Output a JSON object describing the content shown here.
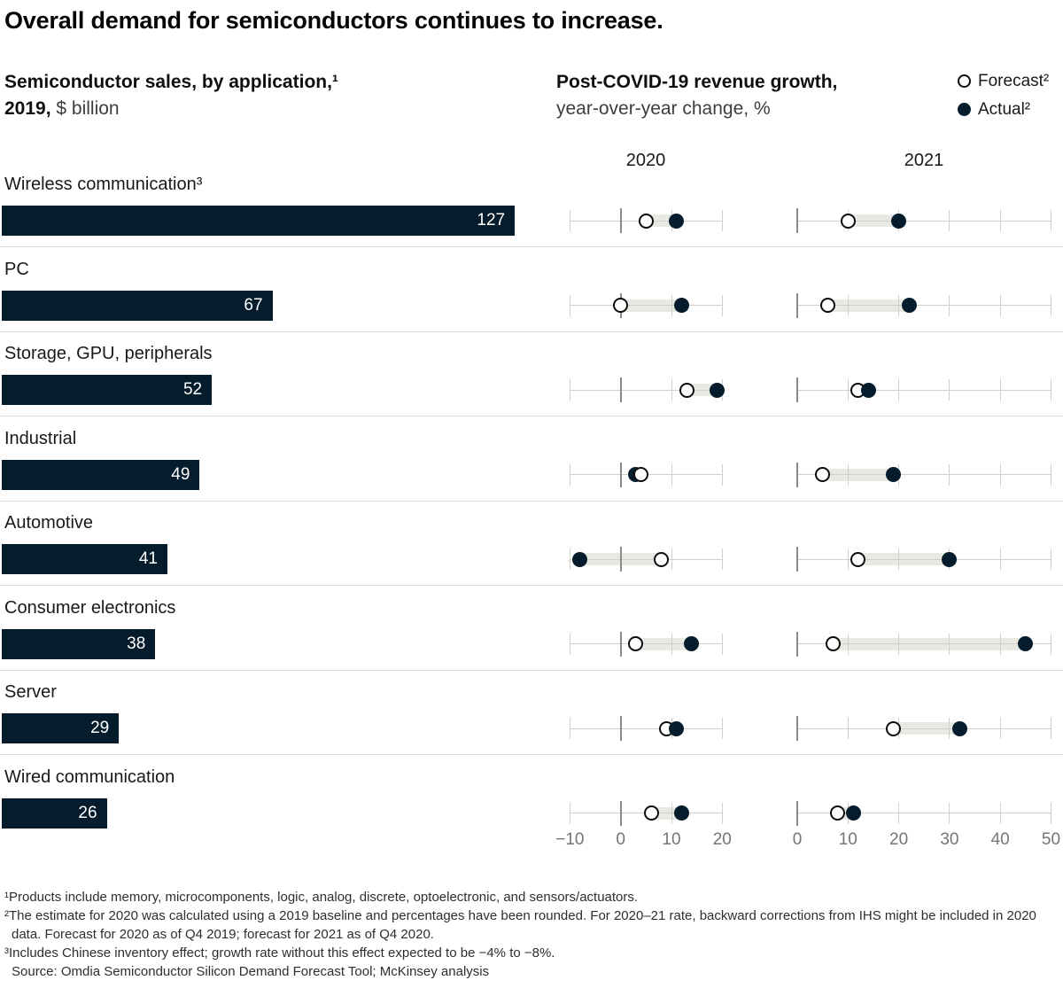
{
  "title": "Overall demand for semiconductors continues to increase.",
  "left_header": {
    "line1": "Semiconductor sales, by application,¹",
    "line2_bold": "2019,",
    "line2_rest": " $ billion"
  },
  "right_header": {
    "line1": "Post-COVID-19 revenue growth,",
    "line2": "year-over-year change, %"
  },
  "legend": {
    "forecast": "Forecast²",
    "actual": "Actual²"
  },
  "year_labels": [
    "2020",
    "2021"
  ],
  "chart_data": {
    "type": "bar+dumbbell",
    "bar_series_title": "Semiconductor sales, by application, 2019, $ billion",
    "dumbbell_series_title": "Post-COVID-19 revenue growth, year-over-year change, %",
    "categories": [
      "Wireless communication³",
      "PC",
      "Storage, GPU, peripherals",
      "Industrial",
      "Automotive",
      "Consumer electronics",
      "Server",
      "Wired communication"
    ],
    "sales_2019_usd_billion": [
      127,
      67,
      52,
      49,
      41,
      38,
      29,
      26
    ],
    "growth_2020": {
      "forecast": [
        5,
        0,
        13,
        4,
        8,
        3,
        9,
        6
      ],
      "actual": [
        11,
        12,
        19,
        3,
        -8,
        14,
        11,
        12
      ]
    },
    "growth_2021": {
      "forecast": [
        10,
        6,
        12,
        5,
        12,
        7,
        19,
        8
      ],
      "actual": [
        20,
        22,
        14,
        19,
        30,
        45,
        32,
        11
      ]
    },
    "axis_2020": {
      "ticks": [
        -10,
        0,
        10,
        20
      ],
      "tick_labels": [
        "−10",
        "0",
        "10",
        "20"
      ],
      "range": [
        -10,
        20
      ]
    },
    "axis_2021": {
      "ticks": [
        0,
        10,
        20,
        30,
        40,
        50
      ],
      "tick_labels": [
        "0",
        "10",
        "20",
        "30",
        "40",
        "50"
      ],
      "range": [
        0,
        50
      ]
    },
    "legend_entries": [
      "Forecast",
      "Actual"
    ],
    "grid": "vertical-ticks-per-row",
    "legend_position": "top-right"
  },
  "footnotes": [
    "¹Products include memory, microcomponents, logic, analog, discrete, optoelectronic, and sensors/actuators.",
    "²The estimate for 2020 was calculated using a 2019 baseline and percentages have been rounded. For 2020–21 rate, backward corrections from IHS might be included in 2020 data. Forecast for 2020 as of Q4 2019; forecast for 2021 as of Q4 2020.",
    "³Includes Chinese inventory effect; growth rate without this effect expected to be −4% to −8%.",
    "Source: Omdia Semiconductor Silicon Demand Forecast Tool; McKinsey analysis"
  ],
  "colors": {
    "navy": "#051c2c",
    "band": "#e9e9e3",
    "gridline": "#cfcfcc",
    "zero_line": "#8a8a8a",
    "separator": "#dcdcdc",
    "axis_text": "#757575",
    "label_text": "#191919",
    "bar_value_text": "#ffffff",
    "open_dot_border": "#0d0d0d"
  }
}
